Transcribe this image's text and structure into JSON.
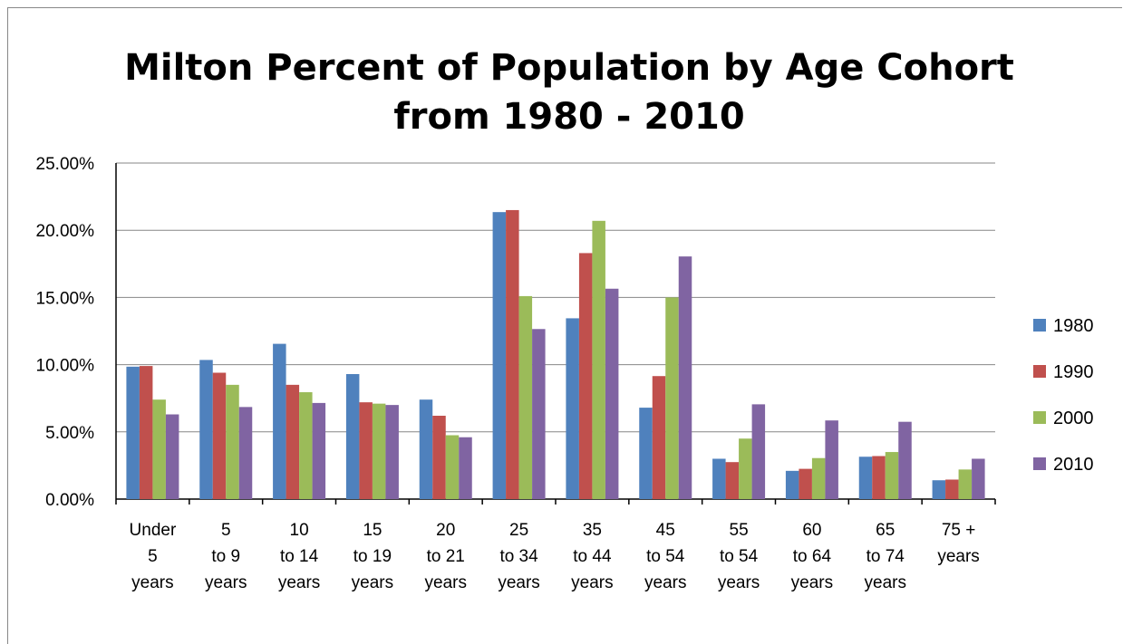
{
  "chart_data": {
    "type": "bar",
    "title_lines": [
      "Milton Percent of Population by Age Cohort",
      "from 1980 - 2010"
    ],
    "xlabel": "",
    "ylabel": "",
    "ylim": [
      0,
      25
    ],
    "y_ticks": [
      "0.00%",
      "5.00%",
      "10.00%",
      "15.00%",
      "20.00%",
      "25.00%"
    ],
    "grid": true,
    "legend_position": "right",
    "categories": [
      [
        "Under",
        "5",
        "years"
      ],
      [
        "5",
        "to 9",
        "years"
      ],
      [
        "10",
        "to 14",
        "years"
      ],
      [
        "15",
        "to 19",
        "years"
      ],
      [
        "20",
        "to 21",
        "years"
      ],
      [
        "25",
        "to 34",
        "years"
      ],
      [
        "35",
        "to 44",
        "years"
      ],
      [
        "45",
        "to 54",
        "years"
      ],
      [
        "55",
        "to 54",
        "years"
      ],
      [
        "60",
        "to 64",
        "years"
      ],
      [
        "65",
        "to 74",
        "years"
      ],
      [
        "75 +",
        "years"
      ]
    ],
    "series": [
      {
        "name": "1980",
        "color": "#4F81BD",
        "values": [
          9.85,
          10.35,
          11.55,
          9.3,
          7.4,
          21.35,
          13.45,
          6.8,
          3.0,
          2.1,
          3.15,
          1.4
        ]
      },
      {
        "name": "1990",
        "color": "#C0504D",
        "values": [
          9.9,
          9.4,
          8.5,
          7.2,
          6.2,
          21.5,
          18.3,
          9.15,
          2.75,
          2.25,
          3.2,
          1.45
        ]
      },
      {
        "name": "2000",
        "color": "#9BBB59",
        "values": [
          7.4,
          8.5,
          7.95,
          7.1,
          4.75,
          15.1,
          20.7,
          15.0,
          4.5,
          3.05,
          3.5,
          2.2
        ]
      },
      {
        "name": "2010",
        "color": "#8064A2",
        "values": [
          6.3,
          6.85,
          7.15,
          7.0,
          4.6,
          12.65,
          15.65,
          18.05,
          7.05,
          5.85,
          5.75,
          3.0
        ]
      }
    ]
  }
}
